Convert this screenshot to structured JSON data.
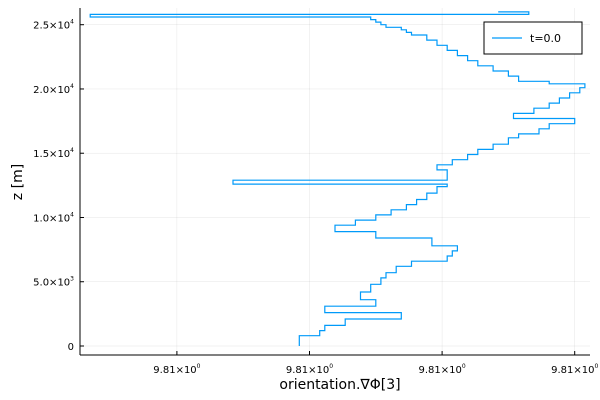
{
  "chart_data": {
    "type": "line",
    "xlabel": "orientation.∇Φ[3]",
    "ylabel": "z [m]",
    "grid": true,
    "legend_position": "top-right",
    "series": [
      {
        "name": "t=0.0",
        "color": "#009af9",
        "line_style": "steps",
        "x_normalized": [
          0.43,
          0.43,
          0.47,
          0.48,
          0.52,
          0.63,
          0.48,
          0.58,
          0.55,
          0.57,
          0.59,
          0.6,
          0.62,
          0.65,
          0.72,
          0.73,
          0.74,
          0.69,
          0.58,
          0.5,
          0.54,
          0.58,
          0.61,
          0.64,
          0.66,
          0.68,
          0.7,
          0.72,
          0.3,
          0.72,
          0.72,
          0.7,
          0.73,
          0.76,
          0.78,
          0.81,
          0.84,
          0.86,
          0.9,
          0.92,
          0.97,
          0.85,
          0.89,
          0.92,
          0.94,
          0.96,
          0.98,
          0.99,
          0.92,
          0.86,
          0.84,
          0.81,
          0.78,
          0.76,
          0.74,
          0.72,
          0.7,
          0.68,
          0.65,
          0.64,
          0.63,
          0.6,
          0.59,
          0.58,
          0.57,
          0.02,
          0.88,
          0.82
        ],
        "y": [
          0,
          300,
          800,
          1200,
          1600,
          2100,
          2600,
          3100,
          3600,
          4200,
          4800,
          5300,
          5700,
          6200,
          6600,
          7000,
          7400,
          7800,
          8400,
          8900,
          9400,
          9800,
          10200,
          10600,
          11000,
          11400,
          11900,
          12400,
          12600,
          12900,
          13300,
          13700,
          14100,
          14500,
          14900,
          15300,
          15700,
          16200,
          16500,
          16900,
          17300,
          17700,
          18100,
          18500,
          18900,
          19300,
          19700,
          20100,
          20400,
          20600,
          21000,
          21400,
          21800,
          22200,
          22600,
          23000,
          23400,
          23800,
          24200,
          24400,
          24600,
          24800,
          25000,
          25200,
          25400,
          25600,
          25800,
          26000
        ]
      }
    ],
    "x_ticks": [
      {
        "label": "9.81×10",
        "exp": "0"
      },
      {
        "label": "9.81×10",
        "exp": "0"
      },
      {
        "label": "9.81×10",
        "exp": "0"
      },
      {
        "label": "9.81×10",
        "exp": "0"
      }
    ],
    "y_ticks": [
      {
        "value": 0,
        "label": "0",
        "exp": ""
      },
      {
        "value": 5000,
        "label": "5.0×10",
        "exp": "3"
      },
      {
        "value": 10000,
        "label": "1.0×10",
        "exp": "4"
      },
      {
        "value": 15000,
        "label": "1.5×10",
        "exp": "4"
      },
      {
        "value": 20000,
        "label": "2.0×10",
        "exp": "4"
      },
      {
        "value": 25000,
        "label": "2.5×10",
        "exp": "4"
      }
    ],
    "ylim": [
      -700,
      26300
    ],
    "xlim_normalized": [
      0,
      1
    ]
  }
}
